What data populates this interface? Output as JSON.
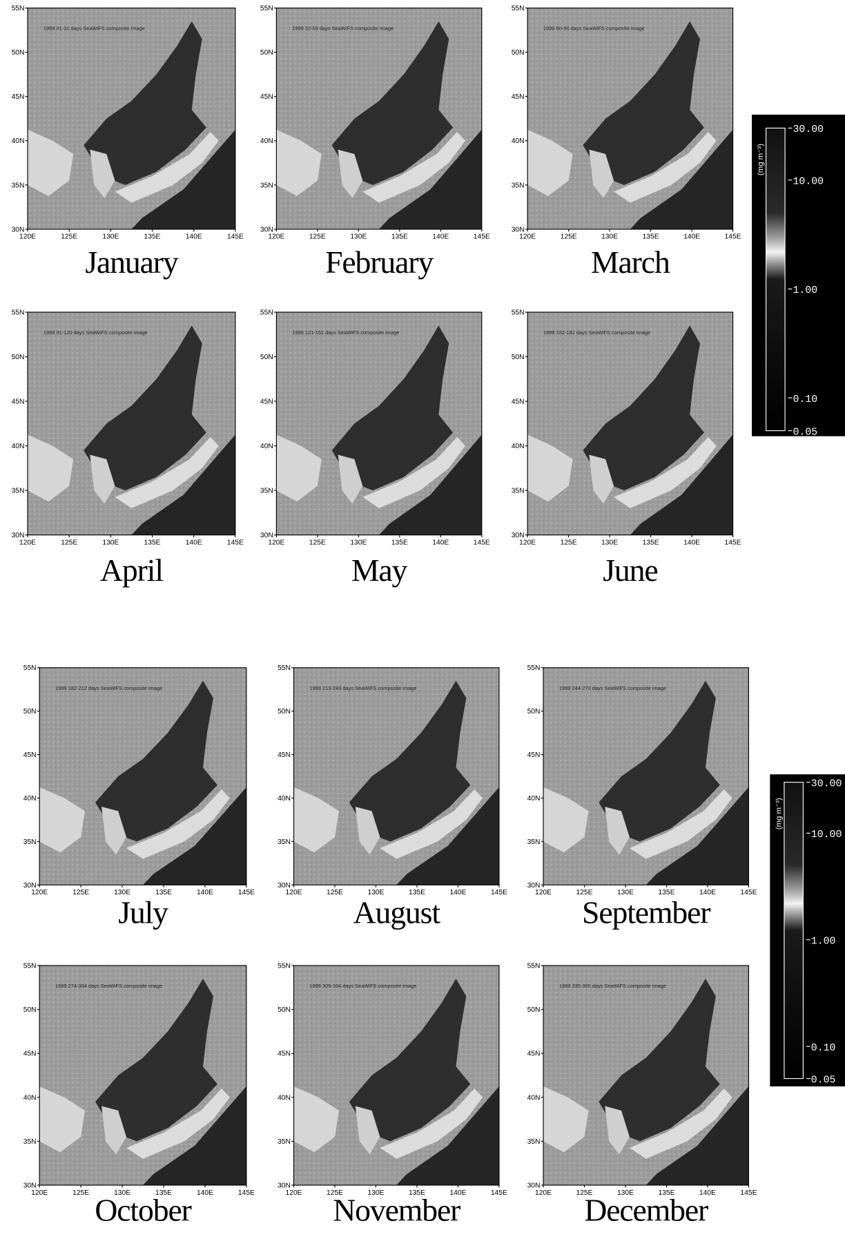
{
  "panels": [
    {
      "label": "January",
      "caption": "1999 01-31 days SeaWiFS composite image"
    },
    {
      "label": "February",
      "caption": "1999 32-59 days SeaWiFS composite image"
    },
    {
      "label": "March",
      "caption": "1999 60-90 days SeaWiFS composite image"
    },
    {
      "label": "April",
      "caption": "1999 91-120 days SeaWiFS composite image"
    },
    {
      "label": "May",
      "caption": "1999 121-151 days SeaWiFS composite image"
    },
    {
      "label": "June",
      "caption": "1999 152-181 days SeaWiFS composite image"
    },
    {
      "label": "July",
      "caption": "1999 182-212 days SeaWiFS composite image"
    },
    {
      "label": "August",
      "caption": "1999 213-243 days SeaWiFS composite image"
    },
    {
      "label": "September",
      "caption": "1999 244-273 days SeaWiFS composite image"
    },
    {
      "label": "October",
      "caption": "1999 274-304 days SeaWiFS composite image"
    },
    {
      "label": "November",
      "caption": "1999 305-334 days SeaWiFS composite image"
    },
    {
      "label": "December",
      "caption": "1999 335-365 days SeaWiFS composite image"
    }
  ],
  "axes": {
    "lat_labels": [
      "55N",
      "50N",
      "45N",
      "40N",
      "35N",
      "30N"
    ],
    "lon_labels": [
      "120E",
      "125E",
      "130E",
      "135E",
      "140E",
      "145E"
    ]
  },
  "colorbar": {
    "unit": "(mg m⁻³)",
    "labels": [
      "30.00",
      "10.00",
      "1.00",
      "0.10",
      "0.05"
    ]
  }
}
